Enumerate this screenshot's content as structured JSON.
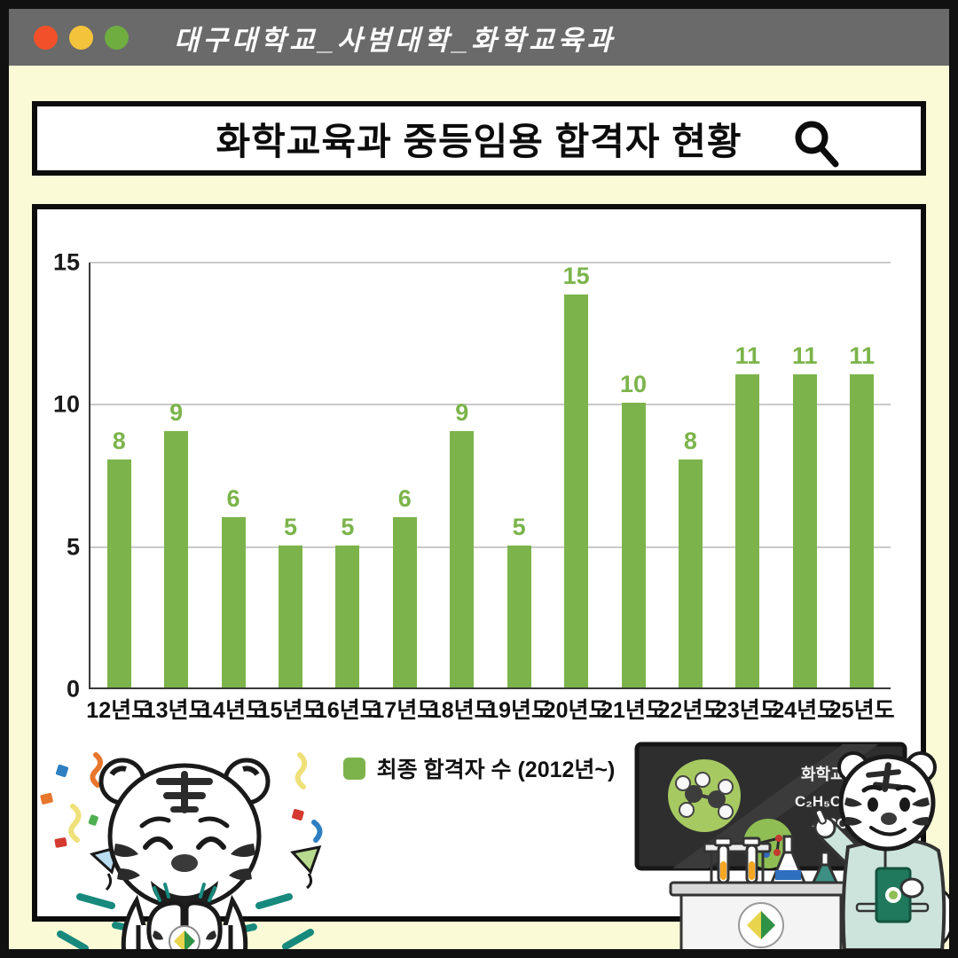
{
  "window": {
    "titlebar": {
      "account_name": "대구대학교_사범대학_화학교육과",
      "traffic_lights": [
        "red",
        "yellow",
        "green"
      ],
      "bar_color": "#6A6A6A"
    }
  },
  "header": {
    "title": "화학교육과 중등임용 합격자 현황",
    "search_icon": "search-icon"
  },
  "chart_data": {
    "type": "bar",
    "title": "화학교육과 중등임용 합격자 현황",
    "categories": [
      "12년도",
      "13년도",
      "14년도",
      "15년도",
      "16년도",
      "17년도",
      "18년도",
      "19년도",
      "20년도",
      "21년도",
      "22년도",
      "23년도",
      "24년도",
      "25년도"
    ],
    "values": [
      8,
      9,
      6,
      5,
      5,
      6,
      9,
      5,
      15,
      10,
      8,
      11,
      11,
      11
    ],
    "xlabel": "",
    "ylabel": "",
    "ylim": [
      0,
      15
    ],
    "yticks": [
      0,
      5,
      10,
      15
    ],
    "grid": true,
    "bar_color": "#7CB44B",
    "value_label_color": "#7CB44B",
    "legend": {
      "label": "최종 합격자 수 (2012년~)",
      "position": "bottom"
    }
  },
  "illustrations": {
    "left_mascot": "celebrating-white-tiger-with-confetti",
    "right_scene": {
      "name": "tiger-professor-chemistry-blackboard",
      "board_title": "화학교육",
      "equation_line1": "C₂H₅OH + 3O₂",
      "equation_line2": "→ 2CO₂ + 3H₂O"
    }
  },
  "colors": {
    "background_yellow": "#FAFBD6",
    "frame_black": "#111111",
    "card_white": "#FFFFFF",
    "bar_green": "#7CB44B",
    "gridline_gray": "#C9C9C9",
    "teal_accent": "#17897D",
    "mint_coat": "#CDE4DC",
    "blackboard": "#2E2E2E"
  }
}
